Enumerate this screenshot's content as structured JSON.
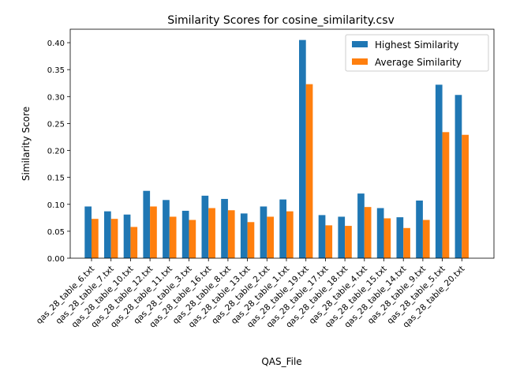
{
  "chart_data": {
    "type": "bar",
    "title": "Similarity Scores for cosine_similarity.csv",
    "xlabel": "QAS_File",
    "ylabel": "Similarity Score",
    "ylim": [
      0,
      0.425
    ],
    "yticks": [
      0.0,
      0.05,
      0.1,
      0.15,
      0.2,
      0.25,
      0.3,
      0.35,
      0.4
    ],
    "legend_position": "top-right",
    "grid": false,
    "categories": [
      "qas_28_table_6.txt",
      "qas_28_table_7.txt",
      "qas_28_table_10.txt",
      "qas_28_table_12.txt",
      "qas_28_table_11.txt",
      "qas_28_table_3.txt",
      "qas_28_table_16.txt",
      "qas_28_table_8.txt",
      "qas_28_table_13.txt",
      "qas_28_table_2.txt",
      "qas_28_table_1.txt",
      "qas_28_table_19.txt",
      "qas_28_table_17.txt",
      "qas_28_table_18.txt",
      "qas_28_table_4.txt",
      "qas_28_table_15.txt",
      "qas_28_table_14.txt",
      "qas_28_table_9.txt",
      "qas_28_table_5.txt",
      "qas_28_table_20.txt"
    ],
    "series": [
      {
        "name": "Highest Similarity",
        "color": "#1f77b4",
        "values": [
          0.096,
          0.087,
          0.081,
          0.125,
          0.108,
          0.088,
          0.116,
          0.11,
          0.083,
          0.096,
          0.109,
          0.405,
          0.08,
          0.077,
          0.12,
          0.093,
          0.076,
          0.107,
          0.322,
          0.303
        ]
      },
      {
        "name": "Average Similarity",
        "color": "#ff7f0e",
        "values": [
          0.073,
          0.073,
          0.058,
          0.096,
          0.077,
          0.071,
          0.093,
          0.089,
          0.067,
          0.077,
          0.087,
          0.323,
          0.061,
          0.06,
          0.095,
          0.074,
          0.056,
          0.071,
          0.234,
          0.229
        ]
      }
    ]
  }
}
